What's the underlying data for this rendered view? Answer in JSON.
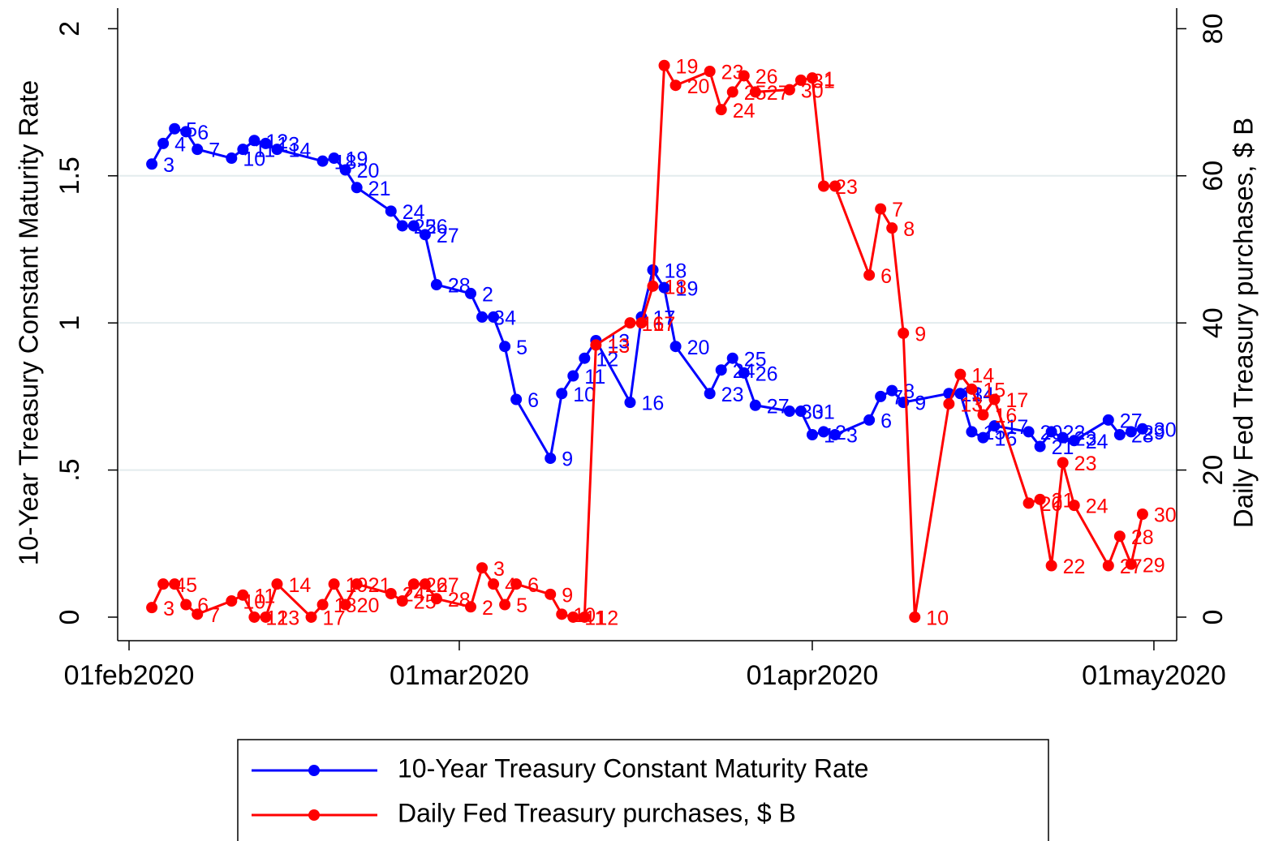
{
  "chart_data": {
    "type": "line",
    "ylabel": "10-Year Treasury Constant Maturity Rate",
    "y2label": "Daily Fed Treasury purchases, $ B",
    "xlim": [
      "2020-01-31",
      "2020-05-03"
    ],
    "xticks": [
      {
        "value": "2020-02-01",
        "label": "01feb2020"
      },
      {
        "value": "2020-03-01",
        "label": "01mar2020"
      },
      {
        "value": "2020-04-01",
        "label": "01apr2020"
      },
      {
        "value": "2020-05-01",
        "label": "01may2020"
      }
    ],
    "ylim": [
      -0.08,
      2.07
    ],
    "yticks": [
      0,
      {
        "value": 0.5,
        "label": ".5"
      },
      1,
      1.5,
      2
    ],
    "y2lim": [
      -3.2,
      82.8
    ],
    "y2ticks": [
      0,
      20,
      40,
      60,
      80
    ],
    "grid": true,
    "legend": "bottom",
    "series": [
      {
        "name": "10-Year Treasury Constant Maturity Rate",
        "color": "#0000ff",
        "axis": "y",
        "x": [
          "2020-02-03",
          "2020-02-04",
          "2020-02-05",
          "2020-02-06",
          "2020-02-07",
          "2020-02-10",
          "2020-02-11",
          "2020-02-12",
          "2020-02-13",
          "2020-02-14",
          "2020-02-18",
          "2020-02-19",
          "2020-02-20",
          "2020-02-21",
          "2020-02-24",
          "2020-02-25",
          "2020-02-26",
          "2020-02-27",
          "2020-02-28",
          "2020-03-02",
          "2020-03-03",
          "2020-03-04",
          "2020-03-05",
          "2020-03-06",
          "2020-03-09",
          "2020-03-10",
          "2020-03-11",
          "2020-03-12",
          "2020-03-13",
          "2020-03-16",
          "2020-03-17",
          "2020-03-18",
          "2020-03-19",
          "2020-03-20",
          "2020-03-23",
          "2020-03-24",
          "2020-03-25",
          "2020-03-26",
          "2020-03-27",
          "2020-03-30",
          "2020-03-31",
          "2020-04-01",
          "2020-04-02",
          "2020-04-03",
          "2020-04-06",
          "2020-04-07",
          "2020-04-08",
          "2020-04-09",
          "2020-04-13",
          "2020-04-14",
          "2020-04-15",
          "2020-04-16",
          "2020-04-17",
          "2020-04-20",
          "2020-04-21",
          "2020-04-22",
          "2020-04-23",
          "2020-04-24",
          "2020-04-27",
          "2020-04-28",
          "2020-04-29",
          "2020-04-30"
        ],
        "values": [
          1.54,
          1.61,
          1.66,
          1.65,
          1.59,
          1.56,
          1.59,
          1.62,
          1.61,
          1.59,
          1.55,
          1.56,
          1.52,
          1.46,
          1.38,
          1.33,
          1.33,
          1.3,
          1.13,
          1.1,
          1.02,
          1.02,
          0.92,
          0.74,
          0.54,
          0.76,
          0.82,
          0.88,
          0.94,
          0.73,
          1.02,
          1.18,
          1.12,
          0.92,
          0.76,
          0.84,
          0.88,
          0.83,
          0.72,
          0.7,
          0.7,
          0.62,
          0.63,
          0.62,
          0.67,
          0.75,
          0.77,
          0.73,
          0.76,
          0.76,
          0.63,
          0.61,
          0.65,
          0.63,
          0.58,
          0.63,
          0.61,
          0.6,
          0.67,
          0.62,
          0.63,
          0.64
        ],
        "point_labels": [
          3,
          4,
          5,
          6,
          7,
          10,
          11,
          12,
          13,
          14,
          18,
          19,
          20,
          21,
          24,
          25,
          26,
          27,
          28,
          2,
          3,
          4,
          5,
          6,
          9,
          10,
          11,
          12,
          13,
          16,
          17,
          18,
          19,
          20,
          23,
          24,
          25,
          26,
          27,
          30,
          31,
          1,
          2,
          3,
          6,
          7,
          8,
          9,
          13,
          14,
          15,
          16,
          17,
          20,
          21,
          22,
          23,
          24,
          27,
          28,
          29,
          30
        ]
      },
      {
        "name": "Daily Fed Treasury purchases, $ B",
        "color": "#ff0000",
        "axis": "y2",
        "x": [
          "2020-02-03",
          "2020-02-04",
          "2020-02-05",
          "2020-02-06",
          "2020-02-07",
          "2020-02-10",
          "2020-02-11",
          "2020-02-12",
          "2020-02-13",
          "2020-02-14",
          "2020-02-17",
          "2020-02-18",
          "2020-02-19",
          "2020-02-20",
          "2020-02-21",
          "2020-02-24",
          "2020-02-25",
          "2020-02-26",
          "2020-02-27",
          "2020-02-28",
          "2020-03-02",
          "2020-03-03",
          "2020-03-04",
          "2020-03-05",
          "2020-03-06",
          "2020-03-09",
          "2020-03-10",
          "2020-03-11",
          "2020-03-12",
          "2020-03-13",
          "2020-03-16",
          "2020-03-17",
          "2020-03-18",
          "2020-03-19",
          "2020-03-20",
          "2020-03-23",
          "2020-03-24",
          "2020-03-25",
          "2020-03-26",
          "2020-03-27",
          "2020-03-30",
          "2020-03-31",
          "2020-04-01",
          "2020-04-02",
          "2020-04-03",
          "2020-04-06",
          "2020-04-07",
          "2020-04-08",
          "2020-04-09",
          "2020-04-10",
          "2020-04-13",
          "2020-04-14",
          "2020-04-15",
          "2020-04-16",
          "2020-04-17",
          "2020-04-20",
          "2020-04-21",
          "2020-04-22",
          "2020-04-23",
          "2020-04-24",
          "2020-04-27",
          "2020-04-28",
          "2020-04-29",
          "2020-04-30"
        ],
        "values": [
          1.3,
          4.5,
          4.5,
          1.7,
          0.4,
          2.2,
          3.0,
          0,
          0,
          4.5,
          0,
          1.7,
          4.5,
          1.7,
          4.5,
          3.2,
          2.2,
          4.5,
          4.5,
          2.5,
          1.4,
          6.7,
          4.5,
          1.7,
          4.5,
          3.1,
          0.4,
          0,
          0,
          37,
          40,
          40,
          45,
          75,
          72.3,
          74.2,
          69,
          71.4,
          73.6,
          71.4,
          71.7,
          73,
          73.3,
          58.6,
          58.6,
          46.5,
          55.5,
          52.9,
          38.6,
          0,
          29,
          33,
          31,
          27.5,
          29.6,
          15.5,
          16,
          7,
          21,
          15.2,
          7,
          11,
          7.2,
          14
        ],
        "point_labels": [
          3,
          4,
          5,
          6,
          7,
          10,
          11,
          12,
          13,
          14,
          17,
          18,
          19,
          20,
          21,
          24,
          25,
          26,
          27,
          28,
          2,
          3,
          4,
          5,
          6,
          9,
          10,
          11,
          12,
          13,
          16,
          17,
          18,
          19,
          20,
          23,
          24,
          25,
          26,
          27,
          30,
          31,
          1,
          2,
          3,
          6,
          7,
          8,
          9,
          10,
          13,
          14,
          15,
          16,
          17,
          20,
          21,
          22,
          23,
          24,
          27,
          28,
          29,
          30
        ]
      }
    ]
  }
}
